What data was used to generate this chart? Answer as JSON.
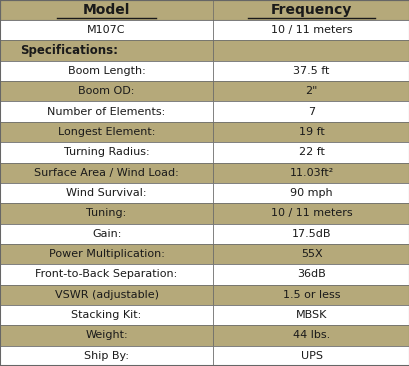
{
  "header": [
    "Model",
    "Frequency"
  ],
  "rows": [
    {
      "label": "M107C",
      "value": "10 / 11 meters",
      "type": "data_white"
    },
    {
      "label": "Specifications:",
      "value": "",
      "type": "section_tan"
    },
    {
      "label": "Boom Length:",
      "value": "37.5 ft",
      "type": "data_white"
    },
    {
      "label": "Boom OD:",
      "value": "2\"",
      "type": "data_tan"
    },
    {
      "label": "Number of Elements:",
      "value": "7",
      "type": "data_white"
    },
    {
      "label": "Longest Element:",
      "value": "19 ft",
      "type": "data_tan"
    },
    {
      "label": "Turning Radius:",
      "value": "22 ft",
      "type": "data_white"
    },
    {
      "label": "Surface Area / Wind Load:",
      "value": "11.03ft²",
      "type": "data_tan"
    },
    {
      "label": "Wind Survival:",
      "value": "90 mph",
      "type": "data_white"
    },
    {
      "label": "Tuning:",
      "value": "10 / 11 meters",
      "type": "data_tan"
    },
    {
      "label": "Gain:",
      "value": "17.5dB",
      "type": "data_white"
    },
    {
      "label": "Power Multiplication:",
      "value": "55X",
      "type": "data_tan"
    },
    {
      "label": "Front-to-Back Separation:",
      "value": "36dB",
      "type": "data_white"
    },
    {
      "label": "VSWR (adjustable)",
      "value": "1.5 or less",
      "type": "data_tan"
    },
    {
      "label": "Stacking Kit:",
      "value": "MBSK",
      "type": "data_white"
    },
    {
      "label": "Weight:",
      "value": "44 lbs.",
      "type": "data_tan"
    },
    {
      "label": "Ship By:",
      "value": "UPS",
      "type": "data_white"
    }
  ],
  "color_tan": "#b5a97a",
  "color_white": "#ffffff",
  "color_text": "#1a1a1a",
  "col_split": 0.52,
  "border_color": "#666666",
  "header_text_color": "#1a1a1a",
  "header_fontsize": 10,
  "cell_fontsize": 8,
  "section_fontsize": 8.5
}
